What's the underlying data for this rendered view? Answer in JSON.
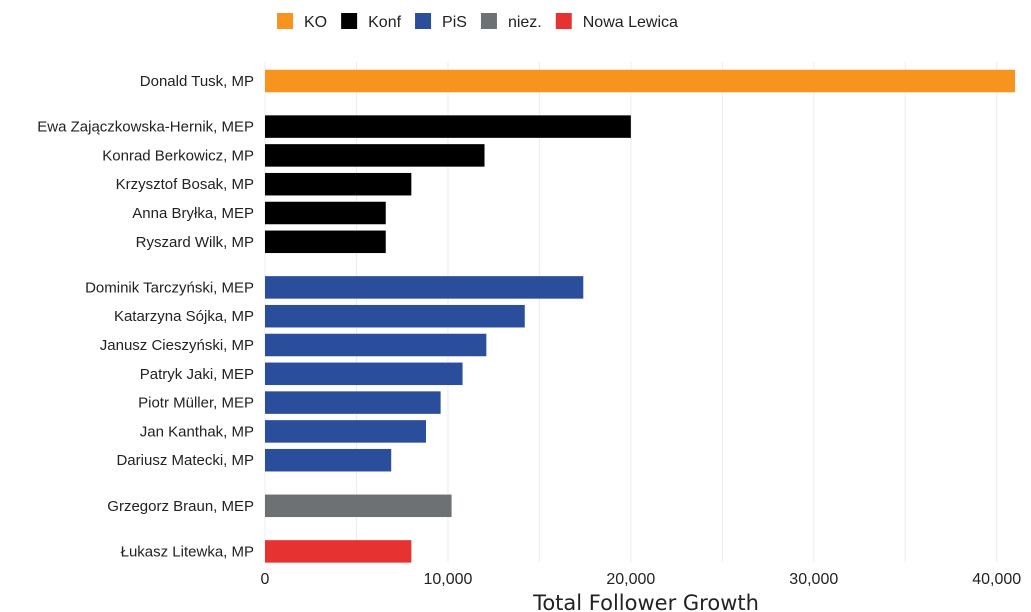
{
  "chart_data": {
    "type": "bar",
    "orientation": "horizontal",
    "xlabel": "Total Follower Growth",
    "xlim": [
      0,
      41000
    ],
    "xticks": [
      0,
      10000,
      20000,
      30000,
      40000
    ],
    "xtick_labels": [
      "0",
      "10,000",
      "20,000",
      "30,000",
      "40,000"
    ],
    "grid": true,
    "legend_position": "top",
    "legend": [
      {
        "name": "KO",
        "color": "#f7941d"
      },
      {
        "name": "Konf",
        "color": "#000000"
      },
      {
        "name": "PiS",
        "color": "#2a4d9c"
      },
      {
        "name": "niez.",
        "color": "#6d7174"
      },
      {
        "name": "Nowa Lewica",
        "color": "#e63331"
      }
    ],
    "groups": [
      {
        "party": "KO",
        "items": [
          {
            "label": "Donald Tusk, MP",
            "value": 41000
          }
        ]
      },
      {
        "party": "Konf",
        "items": [
          {
            "label": "Ewa Zajączkowska-Hernik, MEP",
            "value": 20000
          },
          {
            "label": "Konrad Berkowicz, MP",
            "value": 12000
          },
          {
            "label": "Krzysztof Bosak, MP",
            "value": 8000
          },
          {
            "label": "Anna Bryłka, MEP",
            "value": 6600
          },
          {
            "label": "Ryszard Wilk, MP",
            "value": 6600
          }
        ]
      },
      {
        "party": "PiS",
        "items": [
          {
            "label": "Dominik Tarczyński, MEP",
            "value": 17400
          },
          {
            "label": "Katarzyna Sójka, MP",
            "value": 14200
          },
          {
            "label": "Janusz Cieszyński, MP",
            "value": 12100
          },
          {
            "label": "Patryk Jaki, MEP",
            "value": 10800
          },
          {
            "label": "Piotr Müller, MEP",
            "value": 9600
          },
          {
            "label": "Jan Kanthak, MP",
            "value": 8800
          },
          {
            "label": "Dariusz Matecki, MP",
            "value": 6900
          }
        ]
      },
      {
        "party": "niez.",
        "items": [
          {
            "label": "Grzegorz Braun, MEP",
            "value": 10200
          }
        ]
      },
      {
        "party": "Nowa Lewica",
        "items": [
          {
            "label": "Łukasz Litewka, MP",
            "value": 8000
          }
        ]
      }
    ]
  }
}
